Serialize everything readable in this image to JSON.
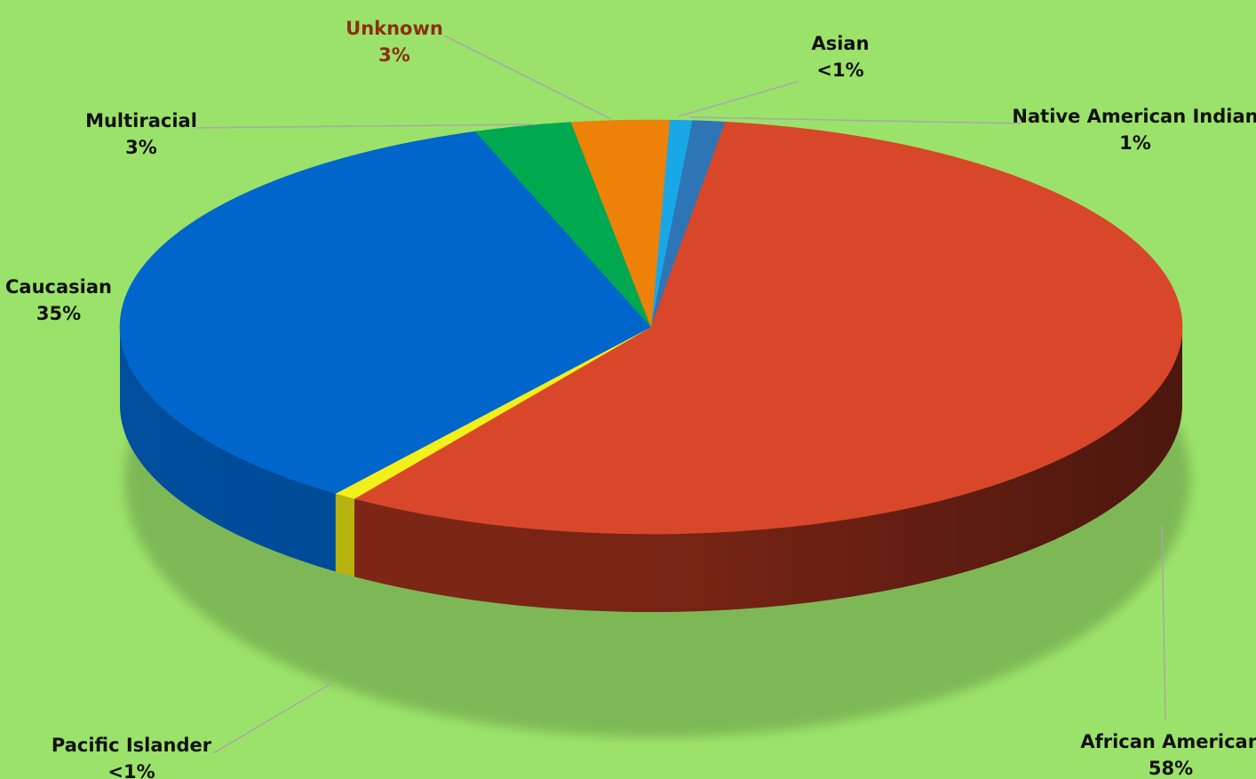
{
  "chart_data": {
    "type": "pie",
    "title": "",
    "slices": [
      {
        "name": "Asian",
        "value": 0.7,
        "label": "<1%",
        "color": "#1aa7e8",
        "side": "#0f76a8"
      },
      {
        "name": "Native American Indian",
        "value": 1,
        "label": "1%",
        "color": "#2e75b6",
        "side": "#1f4f7d"
      },
      {
        "name": "African American",
        "value": 58,
        "label": "58%",
        "color": "#d9472b",
        "side": "#8a2a18"
      },
      {
        "name": "Pacific Islander",
        "value": 0.7,
        "label": "<1%",
        "color": "#f2ef1b",
        "side": "#c9c410"
      },
      {
        "name": "Caucasian",
        "value": 35,
        "label": "35%",
        "color": "#0066cc",
        "side": "#0052a6"
      },
      {
        "name": "Multiracial",
        "value": 3,
        "label": "3%",
        "color": "#00a84f",
        "side": "#007a38"
      },
      {
        "name": "Unknown",
        "value": 3,
        "label": "3%",
        "color": "#ee8208",
        "side": "#b85f05",
        "label_color": "#8b2e10"
      }
    ],
    "legend": "none",
    "label_style": "callouts with leader lines",
    "colors": {
      "background": "#9be26a",
      "label": "#111111",
      "leader_line": "#a8a8a8"
    }
  }
}
